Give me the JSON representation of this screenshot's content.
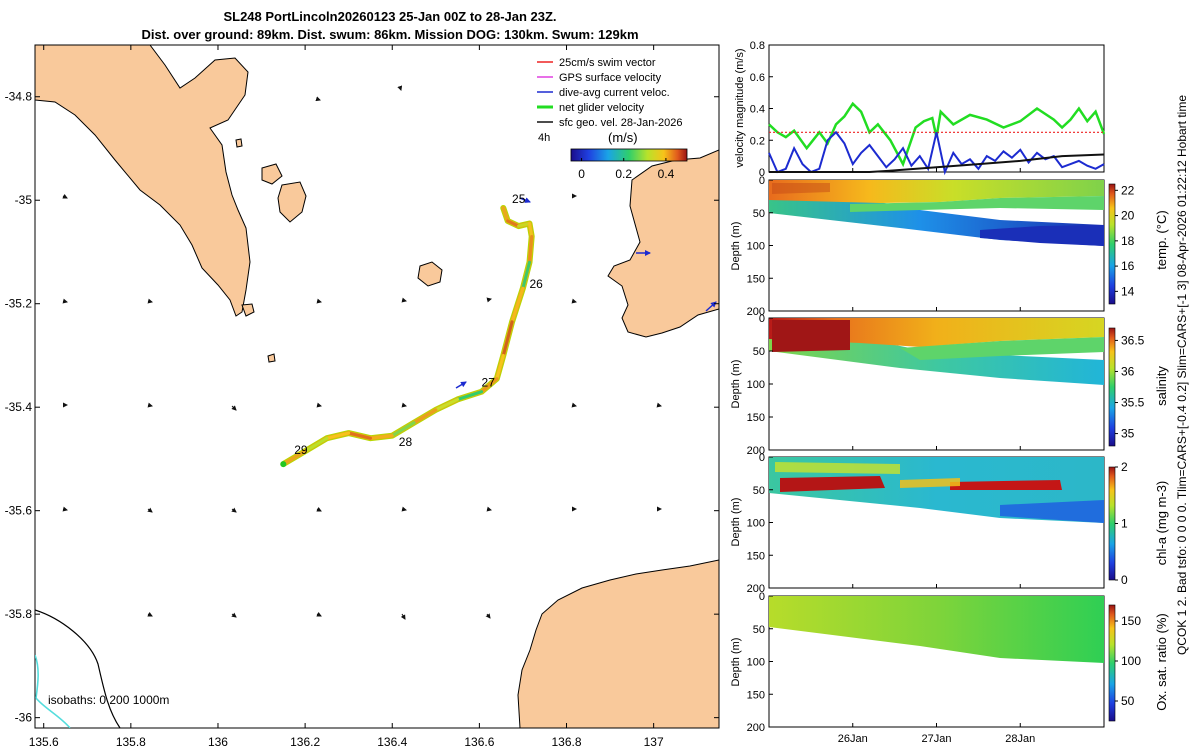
{
  "title_line1": "SL248 PortLincoln20260123 25-Jan 00Z to 28-Jan 23Z.",
  "title_line2": "Dist. over ground: 89km. Dist. swum: 86km. Mission DOG: 130km. Swum: 129km",
  "side_note": "QCOK 1 2. Bad tsfo: 0 0 0 0. Tlim=CARS+[-0.4 0.2] Slim=CARS+[-1 3] 08-Apr-2026 01:22:12 Hobart time",
  "colors": {
    "land": "#f9c99b",
    "track_start": "#22c622",
    "swim_vector": "#ee2222",
    "gps_velocity": "#e040e0",
    "current": "#1c2bd0",
    "net_velocity": "#22dd22",
    "geo_velocity": "#111111",
    "isobath_200": "#55dddd"
  },
  "chart_data": [
    {
      "type": "map",
      "xlim": [
        135.58,
        137.15
      ],
      "ylim": [
        -36.02,
        -34.7
      ],
      "x_ticks": [
        135.6,
        135.8,
        136,
        136.2,
        136.4,
        136.6,
        136.8,
        137
      ],
      "x_tick_labels": [
        "135.6",
        "135.8",
        "136",
        "136.2",
        "136.4",
        "136.6",
        "136.8",
        "137"
      ],
      "y_ticks": [
        -34.8,
        -35,
        -35.2,
        -35.4,
        -35.6,
        -35.8,
        -36
      ],
      "y_tick_labels": [
        "-34.8",
        "-35",
        "-35.2",
        "-35.4",
        "-35.6",
        "-35.8",
        "-36"
      ],
      "legend": [
        {
          "label": "25cm/s swim vector",
          "color": "#ee2222"
        },
        {
          "label": "GPS surface velocity",
          "color": "#e040e0"
        },
        {
          "label": "dive-avg current veloc.",
          "color": "#1c2bd0"
        },
        {
          "label": "net glider velocity",
          "color": "#22dd22"
        },
        {
          "label": "sfc geo. vel. 28-Jan-2026",
          "color": "#111111"
        }
      ],
      "time_step_label": "4h",
      "colorbar": {
        "label": "(m/s)",
        "ticks": [
          0,
          0.2,
          0.4
        ],
        "tick_labels": [
          "0",
          "0.2",
          "0.4"
        ],
        "range": [
          -0.05,
          0.5
        ]
      },
      "isobaths_label": "isobaths:  0   200  1000m",
      "track": [
        [
          136.655,
          -35.015
        ],
        [
          136.665,
          -35.04
        ],
        [
          136.69,
          -35.05
        ],
        [
          136.715,
          -35.045
        ],
        [
          136.72,
          -35.07
        ],
        [
          136.715,
          -35.12
        ],
        [
          136.7,
          -35.17
        ],
        [
          136.675,
          -35.235
        ],
        [
          136.655,
          -35.3
        ],
        [
          136.64,
          -35.345
        ],
        [
          136.605,
          -35.37
        ],
        [
          136.55,
          -35.385
        ],
        [
          136.5,
          -35.405
        ],
        [
          136.45,
          -35.43
        ],
        [
          136.4,
          -35.455
        ],
        [
          136.35,
          -35.46
        ],
        [
          136.3,
          -35.45
        ],
        [
          136.25,
          -35.46
        ],
        [
          136.2,
          -35.485
        ],
        [
          136.15,
          -35.51
        ]
      ],
      "day_labels": [
        {
          "text": "25",
          "lon": 136.675,
          "lat": -35.005
        },
        {
          "text": "26",
          "lon": 136.715,
          "lat": -35.17
        },
        {
          "text": "27",
          "lon": 136.605,
          "lat": -35.36
        },
        {
          "text": "28",
          "lon": 136.415,
          "lat": -35.475
        },
        {
          "text": "29",
          "lon": 136.175,
          "lat": -35.49
        }
      ]
    },
    {
      "type": "line",
      "ylabel": "velocity magnitude (m/s)",
      "ylim": [
        0,
        0.8
      ],
      "y_ticks": [
        0,
        0.2,
        0.4,
        0.6,
        0.8
      ],
      "y_tick_labels": [
        "0",
        "0.2",
        "0.4",
        "0.6",
        "0.8"
      ],
      "series": [
        {
          "name": "net glider velocity",
          "color": "#22dd22",
          "t": [
            0,
            0.1,
            0.2,
            0.3,
            0.45,
            0.6,
            0.7,
            0.8,
            0.9,
            1.0,
            1.1,
            1.2,
            1.3,
            1.45,
            1.6,
            1.75,
            1.85,
            1.95,
            2.0,
            2.05,
            2.2,
            2.4,
            2.6,
            2.8,
            3.0,
            3.2,
            3.4,
            3.5,
            3.6,
            3.7,
            3.8,
            3.9,
            4.0
          ],
          "values": [
            0.3,
            0.25,
            0.22,
            0.26,
            0.15,
            0.25,
            0.18,
            0.3,
            0.35,
            0.43,
            0.38,
            0.25,
            0.3,
            0.2,
            0.05,
            0.28,
            0.32,
            0.34,
            0.22,
            0.38,
            0.3,
            0.36,
            0.33,
            0.28,
            0.32,
            0.4,
            0.33,
            0.28,
            0.33,
            0.4,
            0.32,
            0.38,
            0.24
          ]
        },
        {
          "name": "25cm/s swim vector",
          "color": "#ee2222",
          "t": [
            0,
            4.0
          ],
          "values": [
            0.25,
            0.25
          ]
        },
        {
          "name": "dive-avg current veloc.",
          "color": "#1c2bd0",
          "t": [
            0,
            0.1,
            0.2,
            0.3,
            0.4,
            0.5,
            0.6,
            0.7,
            0.8,
            0.9,
            1.0,
            1.1,
            1.2,
            1.3,
            1.4,
            1.5,
            1.6,
            1.7,
            1.8,
            1.9,
            2.0,
            2.1,
            2.2,
            2.3,
            2.4,
            2.5,
            2.6,
            2.7,
            2.8,
            2.9,
            3.0,
            3.1,
            3.2,
            3.3,
            3.4,
            3.5,
            3.6,
            3.7,
            3.8,
            3.9,
            4.0
          ],
          "values": [
            0.12,
            0.0,
            0.02,
            0.15,
            0.05,
            0.0,
            0.02,
            0.2,
            0.25,
            0.18,
            0.05,
            0.12,
            0.17,
            0.1,
            0.03,
            0.08,
            0.15,
            0.04,
            0.1,
            0.02,
            0.25,
            0.0,
            0.12,
            0.05,
            0.08,
            0.02,
            0.1,
            0.07,
            0.13,
            0.09,
            0.14,
            0.06,
            0.12,
            0.08,
            0.1,
            0.03,
            0.05,
            0.07,
            0.04,
            0.02,
            0.05
          ]
        },
        {
          "name": "sfc geo. vel. 28-Jan-2026",
          "color": "#111111",
          "t": [
            0,
            1.2,
            1.5,
            2.0,
            2.5,
            3.0,
            3.5,
            4.0
          ],
          "values": [
            0.0,
            0.0,
            0.01,
            0.03,
            0.05,
            0.07,
            0.1,
            0.11
          ]
        }
      ]
    },
    {
      "type": "heatmap",
      "ylabel": "Depth (m)",
      "ylim": [
        200,
        0
      ],
      "y_ticks": [
        0,
        50,
        100,
        150,
        200
      ],
      "y_tick_labels": [
        "0",
        "50",
        "100",
        "150",
        "200"
      ],
      "colorbar_label": "temp. (°C)",
      "colorbar_ticks": [
        14,
        16,
        18,
        20,
        22
      ],
      "colorbar_tick_labels": [
        "14",
        "16",
        "18",
        "20",
        "22"
      ],
      "clim": [
        13,
        22.5
      ],
      "max_depth_profile": [
        [
          0,
          45
        ],
        [
          1.0,
          45
        ],
        [
          1.8,
          52
        ],
        [
          2.0,
          70
        ],
        [
          3.0,
          85
        ],
        [
          4.0,
          100
        ]
      ]
    },
    {
      "type": "heatmap",
      "ylabel": "Depth (m)",
      "ylim": [
        200,
        0
      ],
      "y_ticks": [
        0,
        50,
        100,
        150,
        200
      ],
      "y_tick_labels": [
        "0",
        "50",
        "100",
        "150",
        "200"
      ],
      "colorbar_label": "salinity",
      "colorbar_ticks": [
        35,
        35.5,
        36,
        36.5
      ],
      "colorbar_tick_labels": [
        "35",
        "35.5",
        "36",
        "36.5"
      ],
      "clim": [
        34.8,
        36.7
      ],
      "max_depth_profile": [
        [
          0,
          45
        ],
        [
          1.0,
          45
        ],
        [
          1.8,
          52
        ],
        [
          2.0,
          70
        ],
        [
          3.0,
          85
        ],
        [
          4.0,
          100
        ]
      ]
    },
    {
      "type": "heatmap",
      "ylabel": "Depth (m)",
      "ylim": [
        200,
        0
      ],
      "y_ticks": [
        0,
        50,
        100,
        150,
        200
      ],
      "y_tick_labels": [
        "0",
        "50",
        "100",
        "150",
        "200"
      ],
      "colorbar_label": "chl-a (mg m-3)",
      "colorbar_ticks": [
        0,
        1,
        2
      ],
      "colorbar_tick_labels": [
        "0",
        "1",
        "2"
      ],
      "clim": [
        0,
        2
      ],
      "max_depth_profile": [
        [
          0,
          45
        ],
        [
          1.0,
          45
        ],
        [
          1.8,
          52
        ],
        [
          2.0,
          70
        ],
        [
          3.0,
          85
        ],
        [
          4.0,
          100
        ]
      ]
    },
    {
      "type": "heatmap",
      "ylabel": "Depth (m)",
      "ylim": [
        200,
        0
      ],
      "y_ticks": [
        0,
        50,
        100,
        150,
        200
      ],
      "y_tick_labels": [
        "0",
        "50",
        "100",
        "150",
        "200"
      ],
      "colorbar_label": "Ox. sat. ratio (%)",
      "colorbar_ticks": [
        50,
        100,
        150
      ],
      "colorbar_tick_labels": [
        "50",
        "100",
        "150"
      ],
      "clim": [
        25,
        170
      ],
      "x_ticks": [
        1,
        2,
        3
      ],
      "x_tick_labels": [
        "26Jan",
        "27Jan",
        "28Jan"
      ],
      "xlim": [
        0,
        4
      ],
      "max_depth_profile": [
        [
          0,
          45
        ],
        [
          1.0,
          45
        ],
        [
          1.8,
          52
        ],
        [
          2.0,
          70
        ],
        [
          3.0,
          85
        ],
        [
          4.0,
          100
        ]
      ]
    }
  ]
}
